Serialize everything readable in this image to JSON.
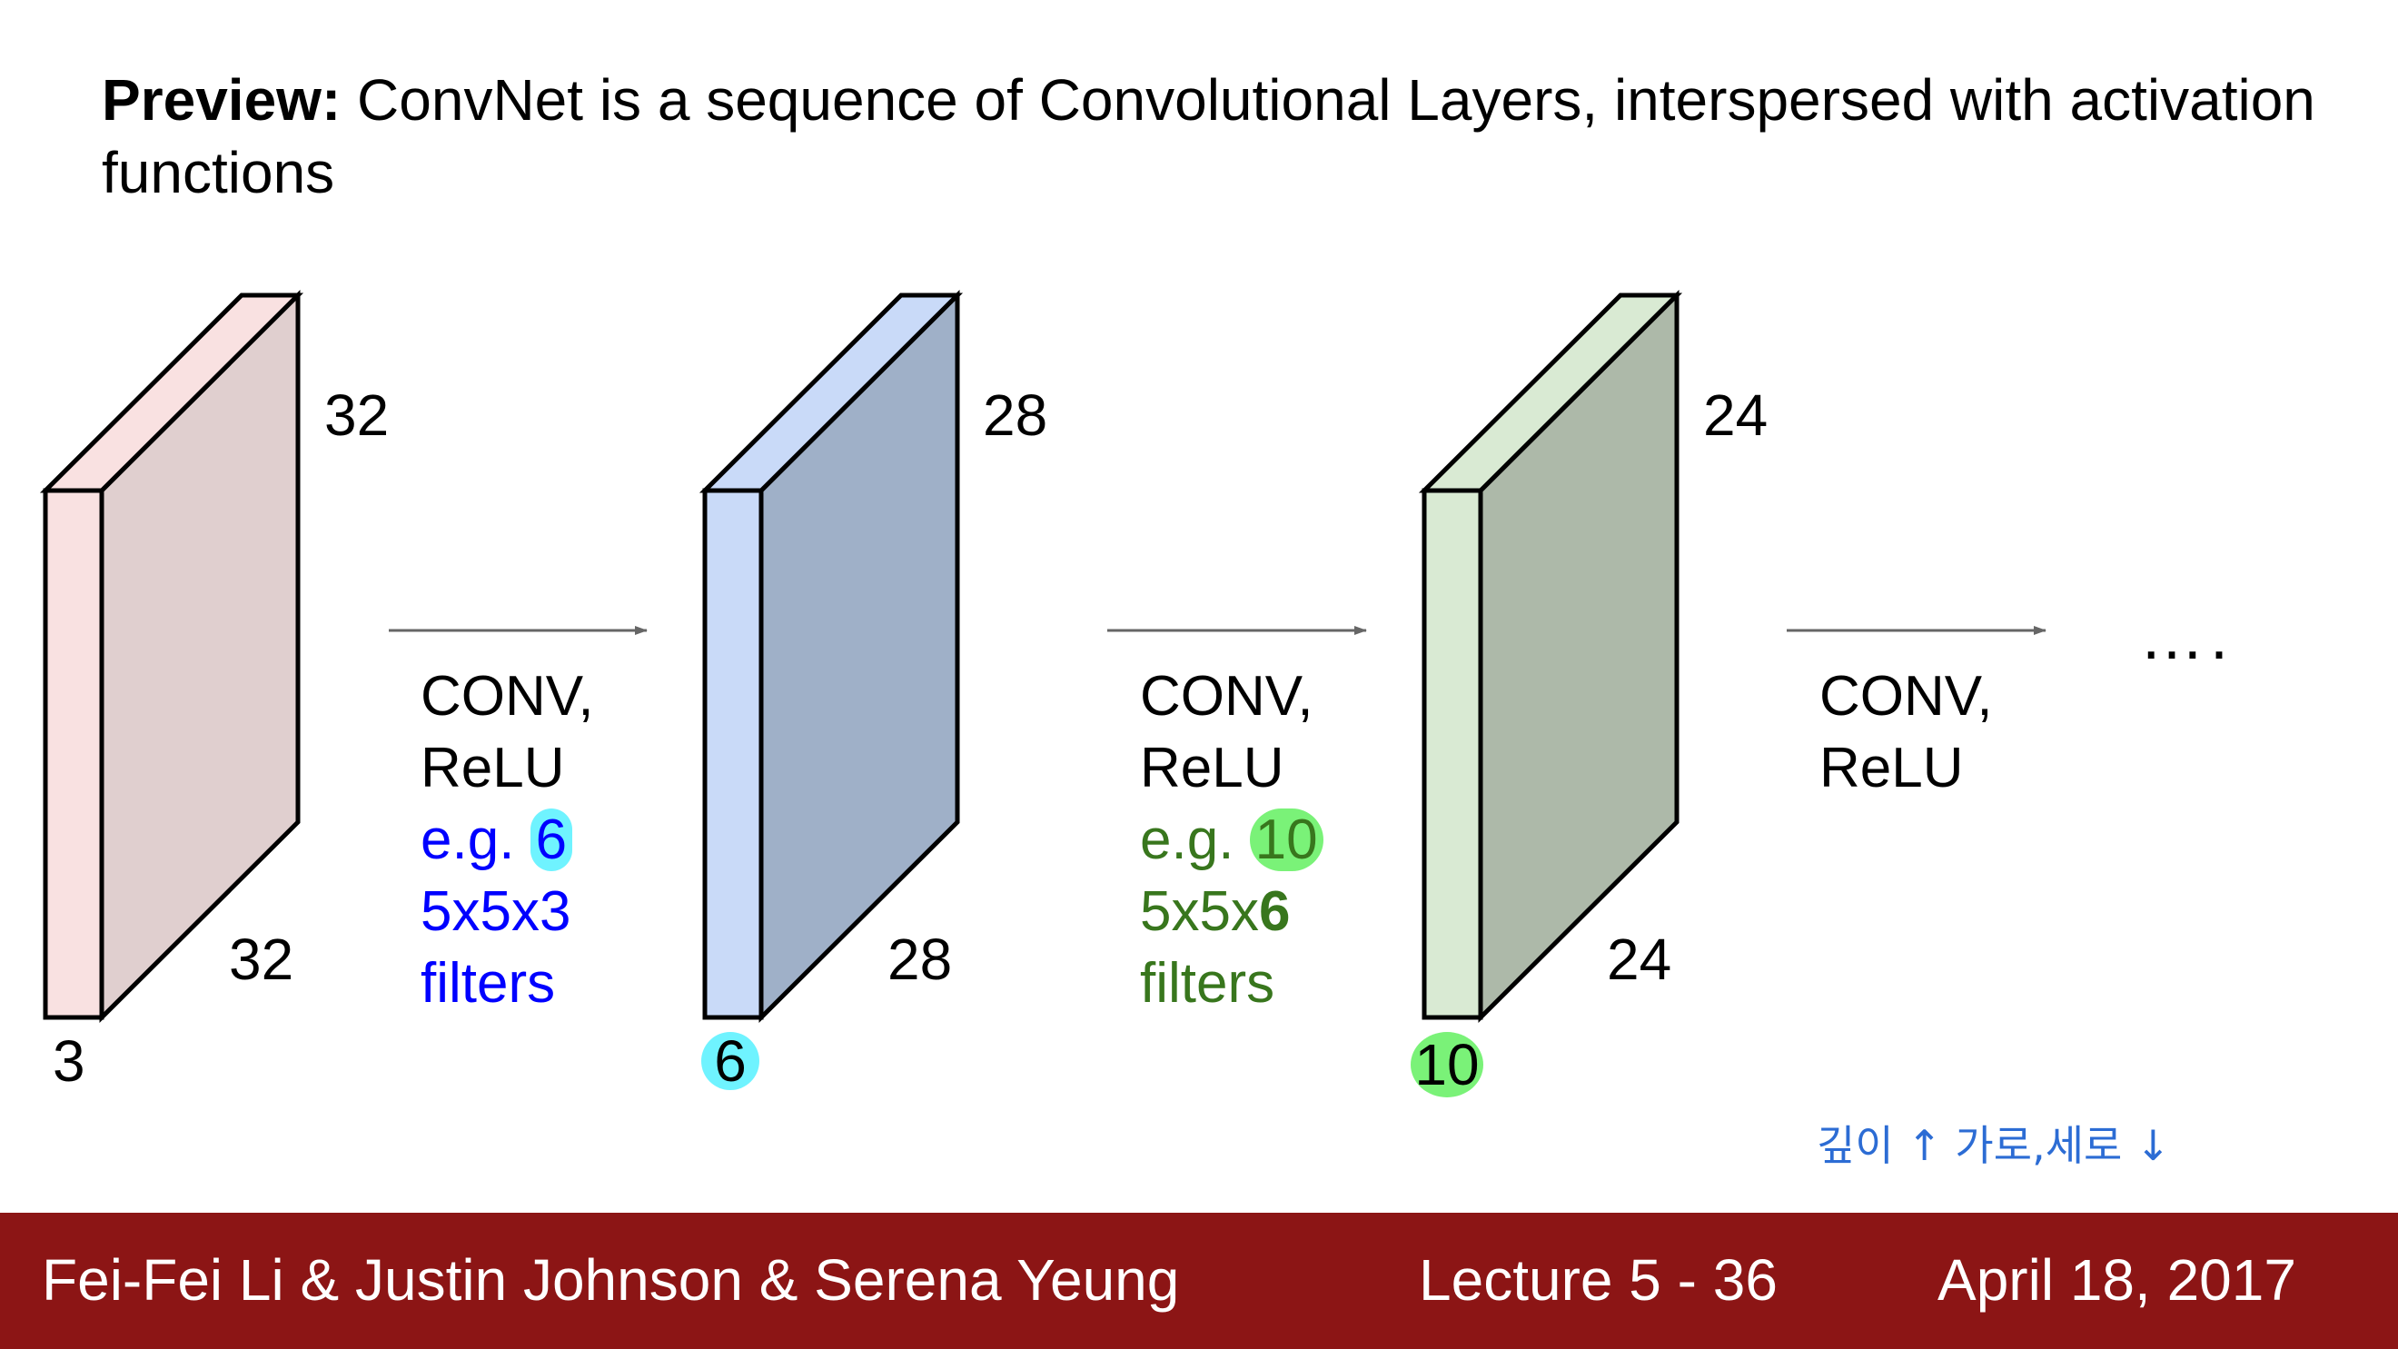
{
  "title": {
    "bold": "Preview:",
    "text": " ConvNet is a sequence of Convolutional Layers, interspersed with activation functions"
  },
  "volumes": [
    {
      "height_label": "32",
      "width_label": "32",
      "depth_label": "3",
      "front_color": "#f9e1e1",
      "side_color": "#e0cfcf",
      "depth_highlight": ""
    },
    {
      "height_label": "28",
      "width_label": "28",
      "depth_label": "6",
      "front_color": "#c9daf8",
      "side_color": "#9fb0c8",
      "depth_highlight": "#6ff3ff"
    },
    {
      "height_label": "24",
      "width_label": "24",
      "depth_label": "10",
      "front_color": "#d9ead3",
      "side_color": "#adb9a9",
      "depth_highlight": "#7af278"
    }
  ],
  "operations": [
    {
      "line1": "CONV,",
      "line2": "ReLU",
      "eg": "e.g.",
      "count": "6",
      "filter_prefix": "5x5x",
      "filter_depth": "3",
      "filters": "filters",
      "color": "#0000ff"
    },
    {
      "line1": "CONV,",
      "line2": "ReLU",
      "eg": "e.g.",
      "count": "10",
      "filter_prefix": "5x5x",
      "filter_depth": "6",
      "filters": "filters",
      "color": "#38761d"
    },
    {
      "line1": "CONV,",
      "line2": "ReLU"
    }
  ],
  "ellipsis": "….",
  "handwritten_note": "깊이 ↑  가로,세로 ↓",
  "footer": {
    "authors": "Fei-Fei Li & Justin Johnson & Serena Yeung",
    "lecture": "Lecture 5 - 36",
    "date": "April 18, 2017",
    "background": "#8c1515"
  }
}
